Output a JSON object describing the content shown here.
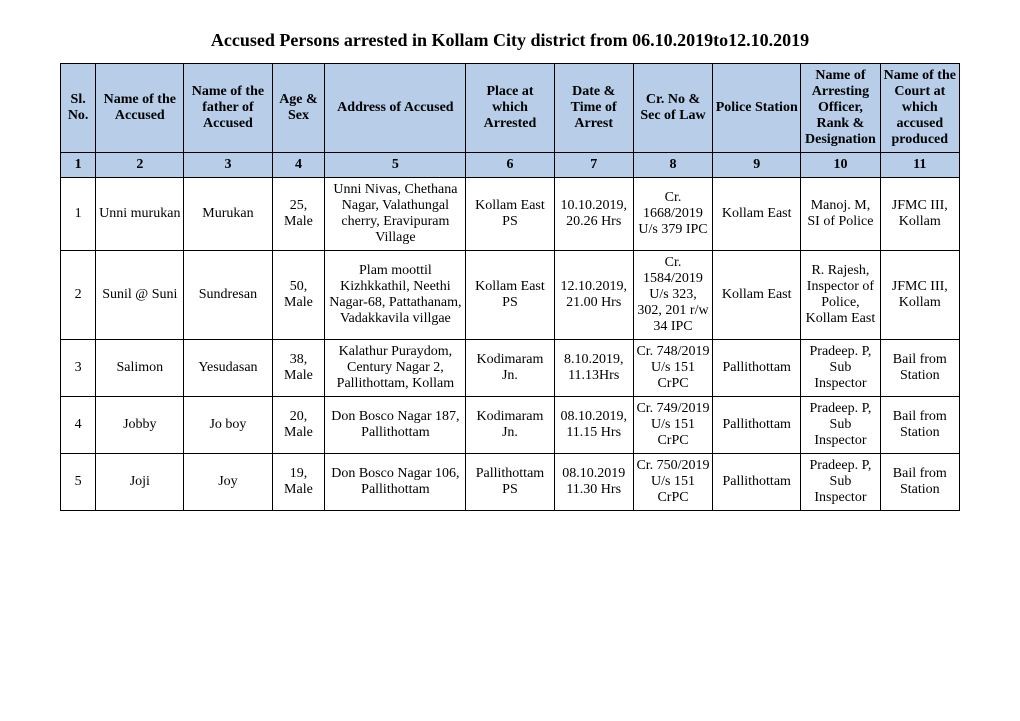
{
  "title": "Accused Persons arrested in   Kollam City  district from  06.10.2019to12.10.2019",
  "header_bg": "#b7cde8",
  "border_color": "#000000",
  "columns": [
    "Sl. No.",
    "Name of the Accused",
    "Name of the father of Accused",
    "Age & Sex",
    "Address of Accused",
    "Place at which Arrested",
    "Date & Time of Arrest",
    "Cr. No & Sec of Law",
    "Police Station",
    "Name of Arresting Officer, Rank & Designation",
    "Name of the Court at which accused produced"
  ],
  "colnums": [
    "1",
    "2",
    "3",
    "4",
    "5",
    "6",
    "7",
    "8",
    "9",
    "10",
    "11"
  ],
  "rows": [
    {
      "sl": "1",
      "name": "Unni murukan",
      "father": "Murukan",
      "age": "25, Male",
      "address": "Unni Nivas, Chethana Nagar, Valathungal cherry, Eravipuram Village",
      "place": "Kollam East PS",
      "datetime": "10.10.2019, 20.26 Hrs",
      "crno": "Cr. 1668/2019 U/s 379 IPC",
      "station": "Kollam East",
      "officer": "Manoj. M, SI of Police",
      "court": "JFMC III, Kollam"
    },
    {
      "sl": "2",
      "name": "Sunil @ Suni",
      "father": "Sundresan",
      "age": "50, Male",
      "address": "Plam moottil Kizhkkathil, Neethi Nagar-68, Pattathanam, Vadakkavila villgae",
      "place": "Kollam East PS",
      "datetime": "12.10.2019, 21.00 Hrs",
      "crno": "Cr. 1584/2019 U/s 323, 302, 201 r/w 34 IPC",
      "station": "Kollam East",
      "officer": "R. Rajesh, Inspector of Police, Kollam East",
      "court": "JFMC III, Kollam"
    },
    {
      "sl": "3",
      "name": "Salimon",
      "father": "Yesudasan",
      "age": "38, Male",
      "address": "Kalathur Puraydom, Century Nagar 2, Pallithottam, Kollam",
      "place": "Kodimaram Jn.",
      "datetime": "8.10.2019, 11.13Hrs",
      "crno": "Cr. 748/2019 U/s 151 CrPC",
      "station": "Pallithottam",
      "officer": "Pradeep. P, Sub Inspector",
      "court": "Bail from Station"
    },
    {
      "sl": "4",
      "name": "Jobby",
      "father": "Jo boy",
      "age": "20, Male",
      "address": "Don Bosco Nagar 187, Pallithottam",
      "place": "Kodimaram Jn.",
      "datetime": "08.10.2019, 11.15 Hrs",
      "crno": "Cr. 749/2019 U/s 151 CrPC",
      "station": "Pallithottam",
      "officer": "Pradeep. P, Sub Inspector",
      "court": "Bail from Station"
    },
    {
      "sl": "5",
      "name": "Joji",
      "father": "Joy",
      "age": "19, Male",
      "address": "Don Bosco Nagar 106, Pallithottam",
      "place": "Pallithottam PS",
      "datetime": "08.10.2019 11.30 Hrs",
      "crno": "Cr. 750/2019 U/s 151 CrPC",
      "station": "Pallithottam",
      "officer": "Pradeep. P, Sub Inspector",
      "court": "Bail from Station"
    }
  ]
}
